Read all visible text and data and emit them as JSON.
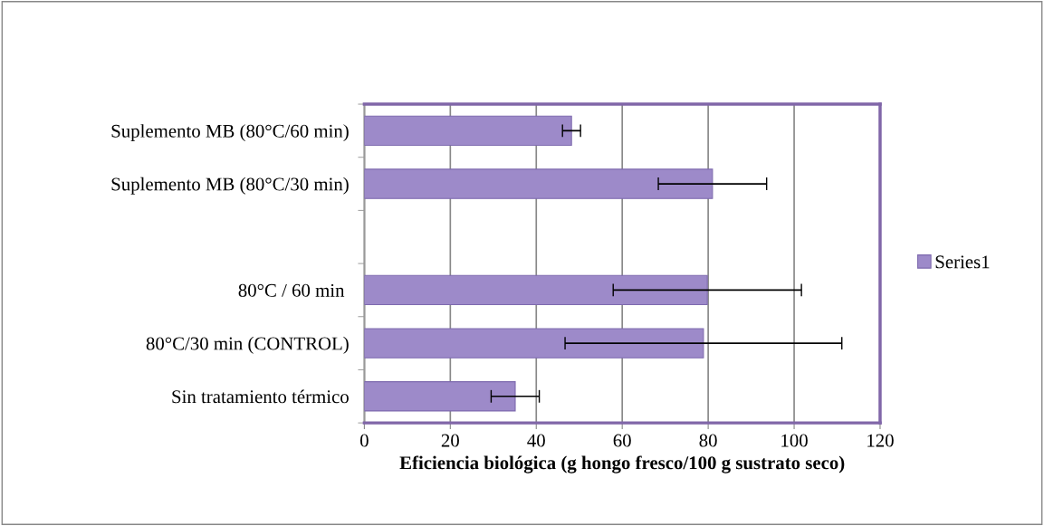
{
  "chart_data": {
    "type": "bar",
    "orientation": "horizontal",
    "xlabel": "Eficiencia biológica (g hongo fresco/100 g sustrato seco)",
    "categories": [
      "Suplemento MB (80°C/60 min)",
      "Suplemento MB (80°C/30 min)",
      null,
      "80°C / 60 min ",
      "80°C/30 min (CONTROL)",
      "Sin tratamiento térmico"
    ],
    "series": [
      {
        "name": "Series1",
        "color": "#9d8ac9",
        "values": [
          48.2,
          81.0,
          null,
          79.8,
          78.9,
          35.1
        ],
        "errors": [
          2.1,
          12.6,
          null,
          21.9,
          32.2,
          5.6
        ]
      }
    ],
    "xlim": [
      0,
      120
    ],
    "xticks": [
      0,
      20,
      40,
      60,
      80,
      100,
      120
    ],
    "grid": "x",
    "legend": "right"
  }
}
